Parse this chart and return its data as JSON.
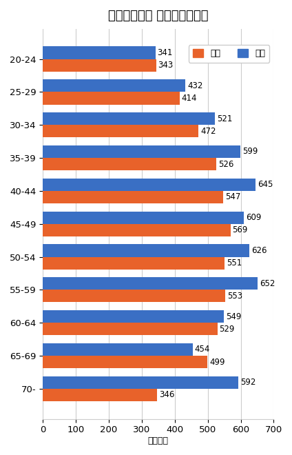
{
  "title": "男女・年齢別 薬剤師平均年収",
  "categories": [
    "20-24",
    "25-29",
    "30-34",
    "35-39",
    "40-44",
    "45-49",
    "50-54",
    "55-59",
    "60-64",
    "65-69",
    "70-"
  ],
  "female_values": [
    343,
    414,
    472,
    526,
    547,
    569,
    551,
    553,
    529,
    499,
    346
  ],
  "male_values": [
    341,
    432,
    521,
    599,
    645,
    609,
    626,
    652,
    549,
    454,
    592
  ],
  "female_color": "#E8622A",
  "male_color": "#3A6FC4",
  "xlabel": "（万円）",
  "xlim": [
    0,
    700
  ],
  "xticks": [
    0,
    100,
    200,
    300,
    400,
    500,
    600,
    700
  ],
  "legend_female": "女性",
  "legend_male": "男性",
  "background_color": "#FFFFFF",
  "bar_height": 0.38,
  "title_fontsize": 13,
  "label_fontsize": 8.5,
  "tick_fontsize": 9.5,
  "xlabel_fontsize": 9
}
